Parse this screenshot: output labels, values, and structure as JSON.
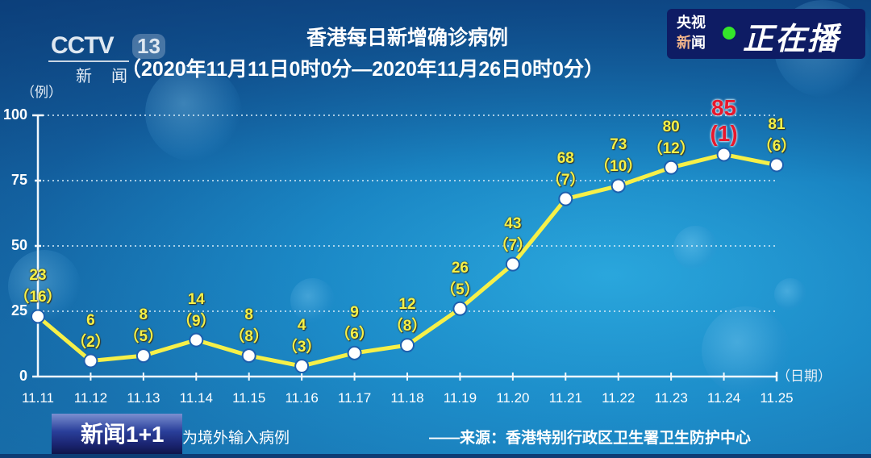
{
  "header": {
    "title": "香港每日新增确诊病例",
    "subtitle": "（2020年11月11日0时0分—2020年11月26日0时0分）"
  },
  "logo": {
    "brand": "CCTV",
    "channel": "13",
    "name": "新闻"
  },
  "live_badge": {
    "line1": "央视",
    "line2a": "新",
    "line2b": "闻",
    "label": "正在播",
    "dot_color": "#34e62a"
  },
  "program_badge": {
    "label": "新闻1+1"
  },
  "footer": {
    "note": "为境外输入病例",
    "source": "——来源：香港特别行政区卫生署卫生防护中心"
  },
  "chart_data": {
    "type": "line",
    "title": "香港每日新增确诊病例",
    "subtitle": "（2020年11月11日0时0分—2020年11月26日0时0分）",
    "xlabel": "（日期）",
    "ylabel": "（例）",
    "ylim": [
      0,
      100
    ],
    "yticks": [
      "0",
      "25",
      "50",
      "75",
      "100"
    ],
    "grid": "horizontal dotted",
    "categories": [
      "11.11",
      "11.12",
      "11.13",
      "11.14",
      "11.15",
      "11.16",
      "11.17",
      "11.18",
      "11.19",
      "11.20",
      "11.21",
      "11.22",
      "11.23",
      "11.24",
      "11.25"
    ],
    "series": [
      {
        "name": "新增确诊病例",
        "values": [
          23,
          6,
          8,
          14,
          8,
          4,
          9,
          12,
          26,
          43,
          68,
          73,
          80,
          85,
          81
        ],
        "color": "#f6f048"
      },
      {
        "name": "境外输入病例",
        "values": [
          16,
          2,
          5,
          9,
          8,
          3,
          6,
          8,
          5,
          7,
          7,
          10,
          12,
          1,
          6
        ]
      }
    ],
    "labels_total": [
      "23",
      "6",
      "8",
      "14",
      "8",
      "4",
      "9",
      "12",
      "26",
      "43",
      "68",
      "73",
      "80",
      "85",
      "81"
    ],
    "labels_imported": [
      "（16）",
      "（2）",
      "（5）",
      "（9）",
      "（8）",
      "（3）",
      "（6）",
      "（8）",
      "（5）",
      "（7）",
      "（7）",
      "（10）",
      "（12）",
      "(1)",
      "（6）"
    ],
    "highlight_index": 13,
    "highlight_color": "#e8182c",
    "footnote": "（ ）为境外输入病例",
    "source": "来源：香港特别行政区卫生署卫生防护中心"
  }
}
